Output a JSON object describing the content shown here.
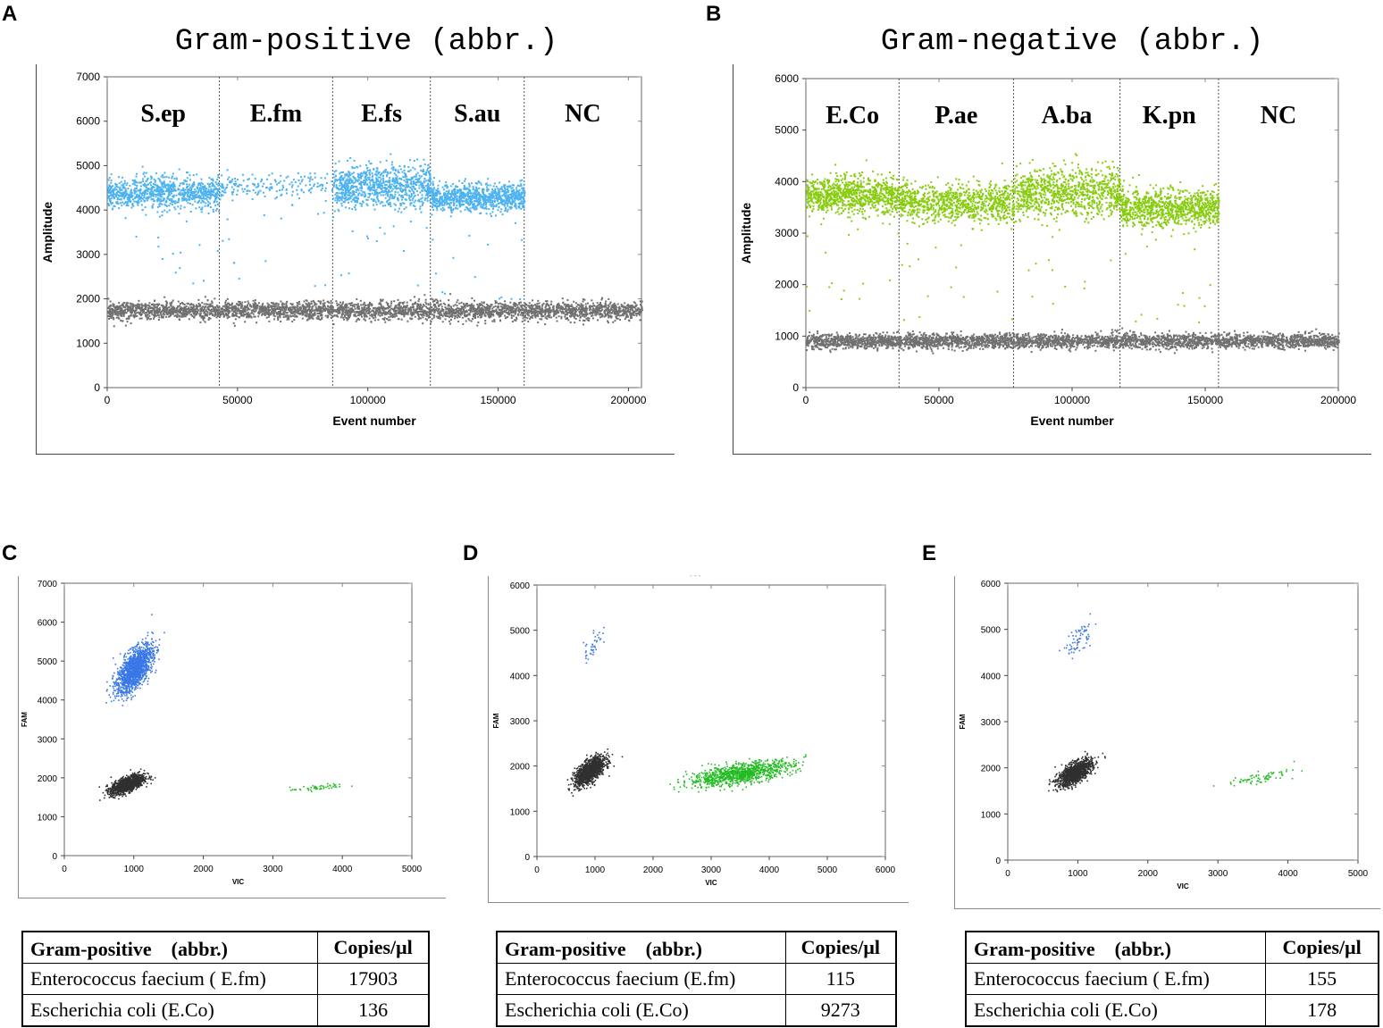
{
  "panels": {
    "A": {
      "letter": "A",
      "title": "Gram-positive (abbr.)"
    },
    "B": {
      "letter": "B",
      "title": "Gram-negative (abbr.)"
    },
    "C": {
      "letter": "C"
    },
    "D": {
      "letter": "D",
      "faint_label": "- - -"
    },
    "E": {
      "letter": "E"
    }
  },
  "colors": {
    "fam_positive": "#4db2f0",
    "vic_positive": "#88cc11",
    "negative": "#707070",
    "scatter_blue": "#3a78e6",
    "scatter_green": "#22bb22",
    "scatter_black": "#303030",
    "grid": "#bbbbbb"
  },
  "chart_data": [
    {
      "id": "A",
      "type": "scatter",
      "title": "Gram-positive (abbr.)",
      "xlabel": "Event number",
      "ylabel": "Amplitude",
      "xlim": [
        0,
        205000
      ],
      "ylim": [
        0,
        7000
      ],
      "xticks": [
        0,
        50000,
        100000,
        150000,
        200000
      ],
      "yticks": [
        0,
        1000,
        2000,
        3000,
        4000,
        5000,
        6000,
        7000
      ],
      "well_labels": [
        "S.ep",
        "E.fm",
        "E.fs",
        "S.au",
        "NC"
      ],
      "well_boundaries": [
        43000,
        86500,
        124000,
        160000
      ],
      "positive_bands": [
        {
          "x": [
            0,
            43000
          ],
          "center": 4400,
          "spread": 300,
          "color": "fam_positive",
          "density": "high"
        },
        {
          "x": [
            43000,
            86500
          ],
          "center": 4550,
          "spread": 250,
          "color": "fam_positive",
          "density": "low"
        },
        {
          "x": [
            86500,
            124000
          ],
          "center": 4550,
          "spread": 400,
          "color": "fam_positive",
          "density": "high"
        },
        {
          "x": [
            124000,
            160000
          ],
          "center": 4300,
          "spread": 250,
          "color": "fam_positive",
          "density": "high"
        }
      ],
      "negative_band": {
        "center": 1750,
        "spread": 200,
        "color": "negative"
      }
    },
    {
      "id": "B",
      "type": "scatter",
      "title": "Gram-negative (abbr.)",
      "xlabel": "Event number",
      "ylabel": "Amplitude",
      "xlim": [
        0,
        200000
      ],
      "ylim": [
        0,
        6000
      ],
      "xticks": [
        0,
        50000,
        100000,
        150000,
        200000
      ],
      "yticks": [
        0,
        1000,
        2000,
        3000,
        4000,
        5000,
        6000
      ],
      "well_labels": [
        "E.Co",
        "P.ae",
        "A.ba",
        "K.pn",
        "NC"
      ],
      "well_boundaries": [
        35000,
        78000,
        118000,
        155000
      ],
      "positive_bands": [
        {
          "x": [
            0,
            35000
          ],
          "center": 3750,
          "spread": 300,
          "color": "vic_positive",
          "density": "high"
        },
        {
          "x": [
            35000,
            78000
          ],
          "center": 3600,
          "spread": 300,
          "color": "vic_positive",
          "density": "high"
        },
        {
          "x": [
            78000,
            118000
          ],
          "center": 3800,
          "spread": 400,
          "color": "vic_positive",
          "density": "high"
        },
        {
          "x": [
            118000,
            155000
          ],
          "center": 3500,
          "spread": 300,
          "color": "vic_positive",
          "density": "high"
        }
      ],
      "negative_band": {
        "center": 920,
        "spread": 140,
        "color": "negative"
      }
    },
    {
      "id": "C",
      "type": "scatter",
      "xlabel": "VIC",
      "ylabel": "FAM",
      "xlim": [
        0,
        5000
      ],
      "ylim": [
        0,
        7000
      ],
      "xticks": [
        0,
        1000,
        2000,
        3000,
        4000,
        5000
      ],
      "yticks": [
        0,
        1000,
        2000,
        3000,
        4000,
        5000,
        6000,
        7000
      ],
      "clusters": [
        {
          "name": "FAM+",
          "x": 1000,
          "y": 4800,
          "sx": 130,
          "sy": 400,
          "n": 1400,
          "color": "scatter_blue"
        },
        {
          "name": "Negative",
          "x": 900,
          "y": 1850,
          "sx": 120,
          "sy": 160,
          "n": 1200,
          "color": "scatter_black"
        },
        {
          "name": "VIC+",
          "x": 3650,
          "y": 1760,
          "sx": 200,
          "sy": 60,
          "n": 50,
          "color": "scatter_green"
        }
      ]
    },
    {
      "id": "D",
      "type": "scatter",
      "xlabel": "VIC",
      "ylabel": "FAM",
      "xlim": [
        0,
        6000
      ],
      "ylim": [
        0,
        6000
      ],
      "xticks": [
        0,
        1000,
        2000,
        3000,
        4000,
        5000,
        6000
      ],
      "yticks": [
        0,
        1000,
        2000,
        3000,
        4000,
        5000,
        6000
      ],
      "clusters": [
        {
          "name": "FAM+",
          "x": 950,
          "y": 4700,
          "sx": 80,
          "sy": 300,
          "n": 40,
          "color": "scatter_blue"
        },
        {
          "name": "Negative",
          "x": 900,
          "y": 1900,
          "sx": 130,
          "sy": 200,
          "n": 1200,
          "color": "scatter_black"
        },
        {
          "name": "VIC+",
          "x": 3500,
          "y": 1850,
          "sx": 450,
          "sy": 180,
          "n": 1000,
          "color": "scatter_green"
        }
      ]
    },
    {
      "id": "E",
      "type": "scatter",
      "xlabel": "VIC",
      "ylabel": "FAM",
      "xlim": [
        0,
        5000
      ],
      "ylim": [
        0,
        6000
      ],
      "xticks": [
        0,
        1000,
        2000,
        3000,
        4000,
        5000
      ],
      "yticks": [
        0,
        1000,
        2000,
        3000,
        4000,
        5000,
        6000
      ],
      "clusters": [
        {
          "name": "FAM+",
          "x": 1000,
          "y": 4800,
          "sx": 90,
          "sy": 250,
          "n": 70,
          "color": "scatter_blue"
        },
        {
          "name": "Negative",
          "x": 950,
          "y": 1900,
          "sx": 120,
          "sy": 180,
          "n": 1200,
          "color": "scatter_black"
        },
        {
          "name": "VIC+",
          "x": 3600,
          "y": 1800,
          "sx": 250,
          "sy": 100,
          "n": 70,
          "color": "scatter_green"
        }
      ]
    }
  ],
  "tables": {
    "C": {
      "header": [
        "Gram-positive　(abbr.)",
        "Copies/μl"
      ],
      "rows": [
        {
          "name": "Enterococcus faecium ( E.fm)",
          "value": "17903"
        },
        {
          "name": "Escherichia coli (E.Co)",
          "value": "136"
        }
      ]
    },
    "D": {
      "header": [
        "Gram-positive　(abbr.)",
        "Copies/μl"
      ],
      "rows": [
        {
          "name": "Enterococcus faecium (E.fm)",
          "value": "115"
        },
        {
          "name": "Escherichia coli (E.Co)",
          "value": "9273"
        }
      ]
    },
    "E": {
      "header": [
        "Gram-positive　(abbr.)",
        "Copies/μl"
      ],
      "rows": [
        {
          "name": "Enterococcus faecium ( E.fm)",
          "value": "155"
        },
        {
          "name": "Escherichia coli (E.Co)",
          "value": "178"
        }
      ]
    }
  }
}
